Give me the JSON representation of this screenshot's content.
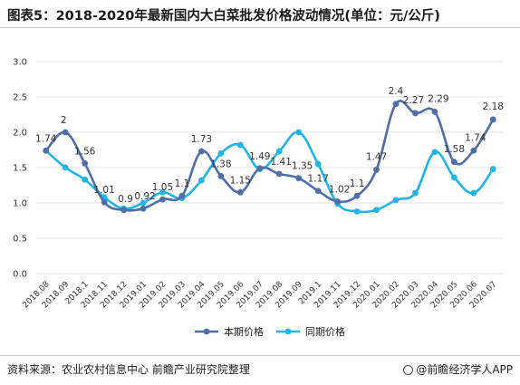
{
  "title": "图表5：2018-2020年最新国内大白菜批发价格波动情况(单位：元/公斤)",
  "source": "资料来源：农业农村信息中心 前瞻产业研究院整理",
  "brand": "@前瞻经济学人APP",
  "chart_data": {
    "type": "line",
    "categories": [
      "2018.08",
      "2018.09",
      "2018.1",
      "2018.11",
      "2018.12",
      "2019.01",
      "2019.02",
      "2019.03",
      "2019.04",
      "2019.05",
      "2019.06",
      "2019.07",
      "2019.08",
      "2019.09",
      "2019.1",
      "2019.11",
      "2019.12",
      "2020.01",
      "2020.02",
      "2020.03",
      "2020.04",
      "2020.05",
      "2020.06",
      "2020.07"
    ],
    "ylim": [
      0,
      3.0
    ],
    "yticks": [
      "0.0",
      "0.5",
      "1.0",
      "1.5",
      "2.0",
      "2.5",
      "3.0"
    ],
    "grid": "horizontal",
    "legend_position": "bottom",
    "series": [
      {
        "name": "本期价格",
        "color": "#4f6ea8",
        "values": [
          1.74,
          2.0,
          1.56,
          1.01,
          0.9,
          0.92,
          1.05,
          1.1,
          1.73,
          1.38,
          1.15,
          1.49,
          1.41,
          1.35,
          1.17,
          1.02,
          1.1,
          1.47,
          2.4,
          2.27,
          2.29,
          1.58,
          1.74,
          2.18
        ],
        "labels": [
          "1.74",
          "2",
          "1.56",
          "1.01",
          "0.9",
          "0.92",
          "1.05",
          "1.1",
          "1.73",
          "1.38",
          "1.15",
          "1.49",
          "1.41",
          "1.35",
          "1.17",
          "1.02",
          "1.1",
          "1.47",
          "2.4",
          "2.27",
          "2.29",
          "1.58",
          "1.74",
          "2.18"
        ]
      },
      {
        "name": "同期价格",
        "color": "#1fb6e6",
        "values": [
          1.74,
          1.5,
          1.33,
          1.08,
          0.92,
          1.0,
          1.15,
          1.07,
          1.32,
          1.7,
          1.82,
          1.48,
          1.73,
          2.0,
          1.55,
          0.99,
          0.88,
          0.9,
          1.04,
          1.14,
          1.72,
          1.36,
          1.14,
          1.48
        ]
      }
    ]
  }
}
